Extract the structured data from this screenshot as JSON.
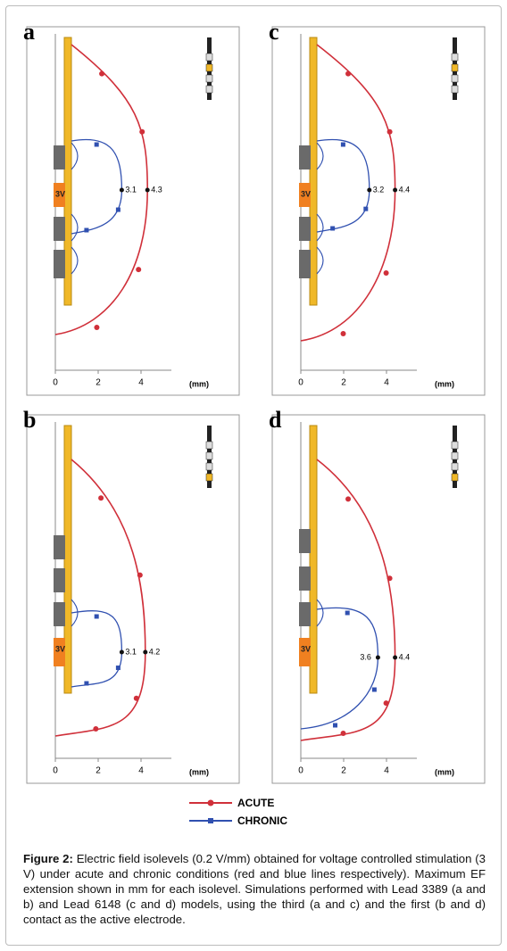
{
  "panels": [
    {
      "letter": "a",
      "active_label": "3V",
      "acute": 4.3,
      "chronic": 3.1,
      "xticks": [
        0,
        2,
        4
      ],
      "x_unit": "(mm)"
    },
    {
      "letter": "c",
      "active_label": "3V",
      "acute": 4.4,
      "chronic": 3.2,
      "xticks": [
        0,
        2,
        4
      ],
      "x_unit": "(mm)"
    },
    {
      "letter": "b",
      "active_label": "3V",
      "acute": 4.2,
      "chronic": 3.1,
      "xticks": [
        0,
        2,
        4
      ],
      "x_unit": "(mm)"
    },
    {
      "letter": "d",
      "active_label": "3V",
      "acute": 4.4,
      "chronic": 3.6,
      "xticks": [
        0,
        2,
        4
      ],
      "x_unit": "(mm)"
    }
  ],
  "legend": {
    "acute": "ACUTE",
    "chronic": "CHRONIC"
  },
  "caption": {
    "label": "Figure 2:",
    "text": "Electric field isolevels (0.2 V/mm) obtained for voltage controlled stimulation (3 V) under acute and chronic conditions (red and blue lines respectively). Maximum EF extension shown in mm for each isolevel. Simulations performed with Lead 3389 (a and b) and Lead 6148 (c and d) models, using the third (a and c) and the first (b and d) contact as the active electrode."
  }
}
